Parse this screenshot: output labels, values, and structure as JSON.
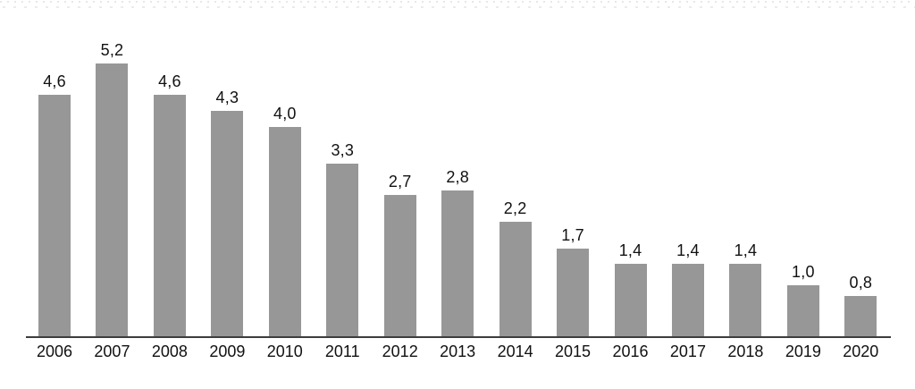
{
  "chart_data": {
    "type": "bar",
    "title": "",
    "xlabel": "",
    "ylabel": "",
    "categories": [
      "2006",
      "2007",
      "2008",
      "2009",
      "2010",
      "2011",
      "2012",
      "2013",
      "2014",
      "2015",
      "2016",
      "2017",
      "2018",
      "2019",
      "2020"
    ],
    "values": [
      4.6,
      5.2,
      4.6,
      4.3,
      4.0,
      3.3,
      2.7,
      2.8,
      2.2,
      1.7,
      1.4,
      1.4,
      1.4,
      1.0,
      0.8
    ],
    "value_labels": [
      "4,6",
      "5,2",
      "4,6",
      "4,3",
      "4,0",
      "3,3",
      "2,7",
      "2,8",
      "2,2",
      "1,7",
      "1,4",
      "1,4",
      "1,4",
      "1,0",
      "0,8"
    ],
    "decimal_separator": ",",
    "ylim": [
      0,
      5.5
    ],
    "grid": false,
    "legend": false,
    "bar_color": "#979797",
    "axis_color": "#3d3d3d",
    "label_color": "#111111",
    "background_color": "#ffffff"
  }
}
